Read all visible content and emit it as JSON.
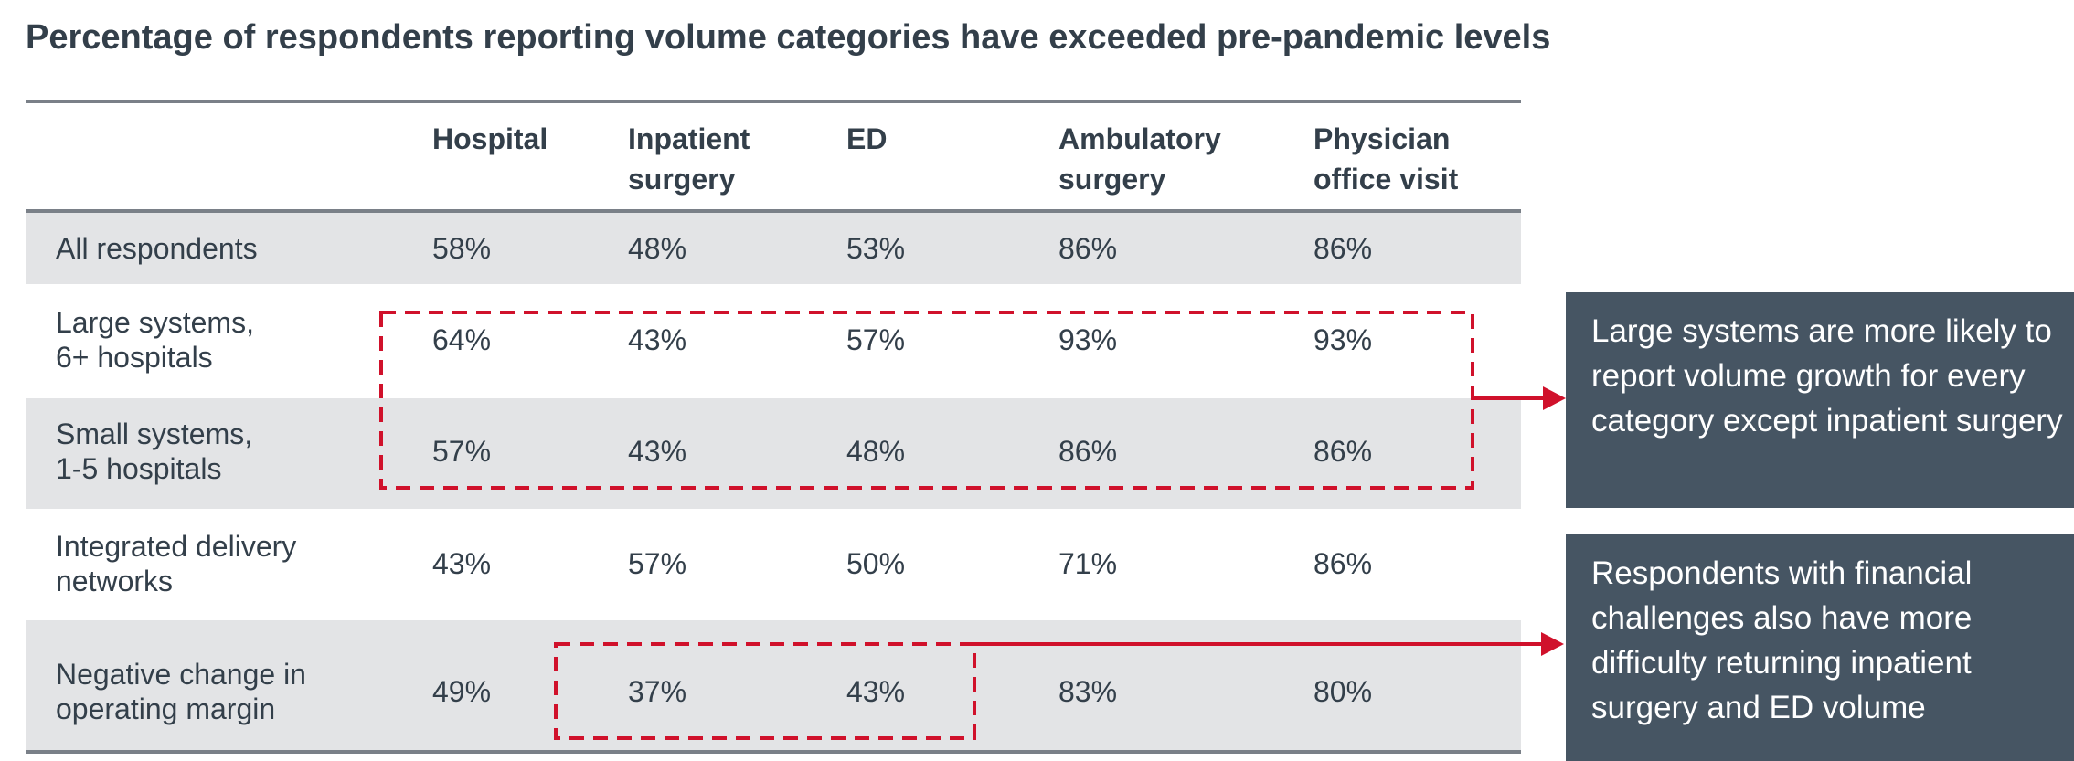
{
  "chart_data": {
    "type": "table",
    "title": "Percentage of respondents reporting volume categories have exceeded pre-pandemic levels",
    "columns": [
      "Hospital",
      "Inpatient\nsurgery",
      "ED",
      "Ambulatory\nsurgery",
      "Physician\noffice visit"
    ],
    "rows": [
      {
        "label": "All respondents",
        "values": [
          "58%",
          "48%",
          "53%",
          "86%",
          "86%"
        ]
      },
      {
        "label": "Large systems,\n6+ hospitals",
        "values": [
          "64%",
          "43%",
          "57%",
          "93%",
          "93%"
        ]
      },
      {
        "label": "Small systems,\n1-5 hospitals",
        "values": [
          "57%",
          "43%",
          "48%",
          "86%",
          "86%"
        ]
      },
      {
        "label": "Integrated delivery\nnetworks",
        "values": [
          "43%",
          "57%",
          "50%",
          "71%",
          "86%"
        ]
      },
      {
        "label": "Negative change in\noperating margin",
        "values": [
          "49%",
          "37%",
          "43%",
          "83%",
          "80%"
        ]
      }
    ],
    "highlights": [
      {
        "rows": [
          "Large systems,\n6+ hospitals",
          "Small systems,\n1-5 hospitals"
        ],
        "columns": "all"
      },
      {
        "rows": [
          "Negative change in\noperating margin"
        ],
        "columns": [
          "Inpatient surgery",
          "ED"
        ]
      }
    ]
  },
  "callouts": [
    "Large systems are more likely to report volume growth for every category except inpatient surgery",
    "Respondents with financial challenges also have more difficulty returning inpatient surgery and ED volume"
  ],
  "colors": {
    "text": "#333f4a",
    "row_shade": "#e3e4e6",
    "highlight": "#d0112b",
    "callout_bg": "#465563",
    "rule": "#7a8088"
  }
}
